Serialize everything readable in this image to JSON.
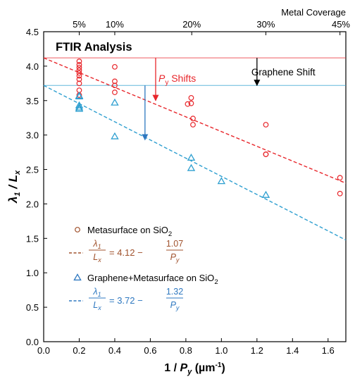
{
  "chart_data": {
    "type": "scatter",
    "title": "FTIR Analysis",
    "xlabel": "1 / P_y (µm⁻¹)",
    "ylabel": "λ1 / Lx",
    "xlim": [
      0.0,
      1.7
    ],
    "ylim": [
      0.0,
      4.5
    ],
    "x_ticks": [
      0.0,
      0.2,
      0.4,
      0.6,
      0.8,
      1.0,
      1.2,
      1.4,
      1.6
    ],
    "x_tick_labels": [
      "0.0",
      "0.2",
      "0.4",
      "0.6",
      "0.8",
      "1.0",
      "1.2",
      "1.4",
      "1.6"
    ],
    "y_ticks": [
      0.0,
      0.5,
      1.0,
      1.5,
      2.0,
      2.5,
      3.0,
      3.5,
      4.0,
      4.5
    ],
    "y_tick_labels": [
      "0.0",
      "0.5",
      "1.0",
      "1.5",
      "2.0",
      "2.5",
      "3.0",
      "3.5",
      "4.0",
      "4.5"
    ],
    "grid": false,
    "top_axis": {
      "title": "Metal Coverage",
      "ticks": [
        {
          "x": 0.2,
          "label": "5%"
        },
        {
          "x": 0.4,
          "label": "10%"
        },
        {
          "x": 0.833,
          "label": "20%"
        },
        {
          "x": 1.25,
          "label": "30%"
        },
        {
          "x": 1.667,
          "label": "45%"
        }
      ]
    },
    "series": [
      {
        "name": "Metasurface on SiO2",
        "marker": "circle",
        "color": "#e8262b",
        "points": [
          {
            "x": 0.2,
            "y": 4.07
          },
          {
            "x": 0.2,
            "y": 4.02
          },
          {
            "x": 0.2,
            "y": 3.98
          },
          {
            "x": 0.2,
            "y": 3.94
          },
          {
            "x": 0.2,
            "y": 3.9
          },
          {
            "x": 0.2,
            "y": 3.86
          },
          {
            "x": 0.2,
            "y": 3.81
          },
          {
            "x": 0.2,
            "y": 3.75
          },
          {
            "x": 0.2,
            "y": 3.65
          },
          {
            "x": 0.2,
            "y": 3.58
          },
          {
            "x": 0.4,
            "y": 3.99
          },
          {
            "x": 0.4,
            "y": 3.78
          },
          {
            "x": 0.4,
            "y": 3.72
          },
          {
            "x": 0.4,
            "y": 3.62
          },
          {
            "x": 0.81,
            "y": 3.45
          },
          {
            "x": 0.83,
            "y": 3.54
          },
          {
            "x": 0.83,
            "y": 3.46
          },
          {
            "x": 0.84,
            "y": 3.24
          },
          {
            "x": 0.84,
            "y": 3.15
          },
          {
            "x": 1.25,
            "y": 3.15
          },
          {
            "x": 1.25,
            "y": 2.72
          },
          {
            "x": 1.25,
            "y": 2.72
          },
          {
            "x": 1.667,
            "y": 2.38
          },
          {
            "x": 1.667,
            "y": 2.15
          }
        ]
      },
      {
        "name": "Graphene+Metasurface on SiO2",
        "marker": "triangle",
        "color": "#2e9fd0",
        "points": [
          {
            "x": 0.2,
            "y": 3.57
          },
          {
            "x": 0.2,
            "y": 3.56
          },
          {
            "x": 0.2,
            "y": 3.43
          },
          {
            "x": 0.2,
            "y": 3.4
          },
          {
            "x": 0.2,
            "y": 3.38
          },
          {
            "x": 0.4,
            "y": 3.47
          },
          {
            "x": 0.4,
            "y": 2.98
          },
          {
            "x": 0.83,
            "y": 2.67
          },
          {
            "x": 0.83,
            "y": 2.52
          },
          {
            "x": 1.0,
            "y": 2.33
          },
          {
            "x": 1.25,
            "y": 2.13
          }
        ]
      }
    ],
    "fits": [
      {
        "name": "Metasurface fit",
        "color": "#e8262b",
        "intercept": 4.12,
        "slope": -1.07
      },
      {
        "name": "Graphene+Metasurface fit",
        "color": "#2e9fd0",
        "intercept": 3.72,
        "slope": -1.32
      }
    ],
    "reference_lines": [
      {
        "y": 4.12,
        "color": "#e8262b"
      },
      {
        "y": 3.72,
        "color": "#2e9fd0"
      }
    ],
    "annotations": [
      {
        "text_main": "P",
        "text_sub": "y",
        "text_tail": " Shifts",
        "color": "#e8262b",
        "arrow_x": 0.63,
        "from_y": 4.12,
        "to_y": 3.5
      },
      {
        "text": "Graphene Shift",
        "color": "#000000",
        "arrow_x": 1.2,
        "from_y": 4.12,
        "to_y": 3.72
      },
      {
        "arrow_x": 0.57,
        "from_y": 3.72,
        "to_y": 2.93,
        "color": "#2e78c0"
      }
    ],
    "legend": {
      "placement": "bottom-left",
      "entries": [
        {
          "label": "Metasurface on SiO",
          "sub": "2",
          "marker": "circle",
          "marker_color": "#a0522d",
          "line_color": "#a0522d",
          "equation": {
            "lhs_num": "λ",
            "lhs_num_sub": "1",
            "lhs_den": "L",
            "lhs_den_sub": "x",
            "intercept": "4.12",
            "rhs_num": "1.07",
            "rhs_den": "P",
            "rhs_den_sub": "y"
          }
        },
        {
          "label": "Graphene+Metasurface on SiO",
          "sub": "2",
          "marker": "triangle",
          "marker_color": "#2e78c0",
          "line_color": "#2e78c0",
          "equation": {
            "lhs_num": "λ",
            "lhs_num_sub": "1",
            "lhs_den": "L",
            "lhs_den_sub": "x",
            "intercept": "3.72",
            "rhs_num": "1.32",
            "rhs_den": "P",
            "rhs_den_sub": "y"
          }
        }
      ]
    }
  }
}
